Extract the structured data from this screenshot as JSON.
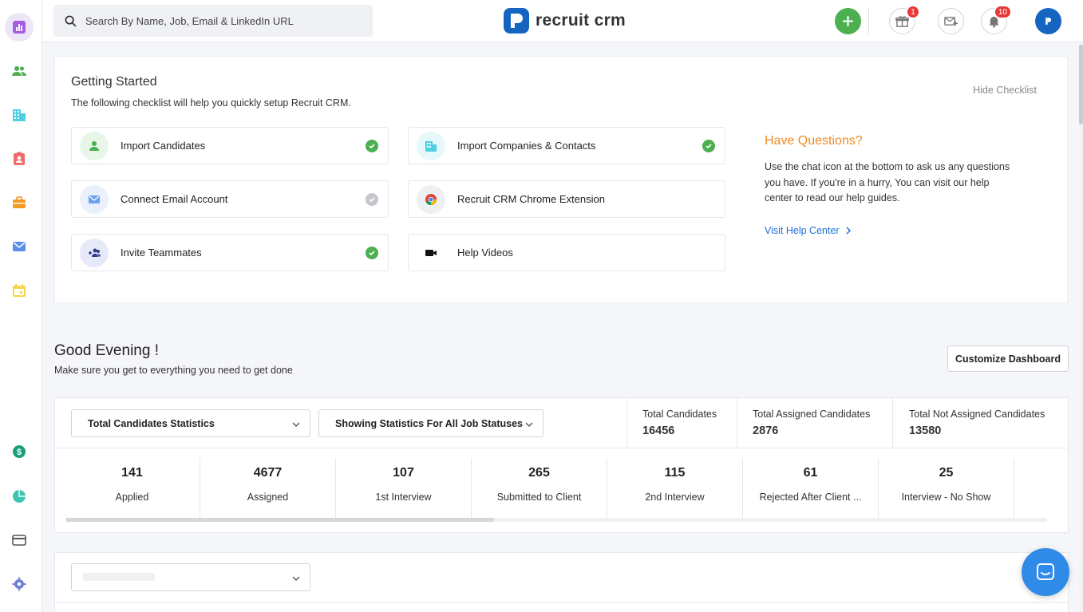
{
  "colors": {
    "brand": "#1565c0",
    "success": "#4caf50",
    "accent_orange": "#f08a24",
    "link": "#1e6fd6",
    "badge": "#e53935"
  },
  "sidebar": {
    "items": [
      {
        "icon": "dashboard-icon",
        "active": true
      },
      {
        "icon": "candidates-icon"
      },
      {
        "icon": "companies-icon"
      },
      {
        "icon": "contacts-icon"
      },
      {
        "icon": "jobs-icon"
      },
      {
        "icon": "email-icon"
      },
      {
        "icon": "calendar-icon"
      },
      {
        "icon": "billing-dollar-icon"
      },
      {
        "icon": "reports-pie-icon"
      },
      {
        "icon": "credit-card-icon"
      },
      {
        "icon": "settings-icon"
      }
    ]
  },
  "topbar": {
    "search_placeholder": "Search By Name, Job, Email & LinkedIn URL",
    "logo_text": "recruit crm",
    "gift_badge": "1",
    "notification_badge": "10"
  },
  "checklist": {
    "title": "Getting Started",
    "subtitle": "The following checklist will help you quickly setup Recruit CRM.",
    "hide_label": "Hide Checklist",
    "items": [
      {
        "label": "Import Candidates",
        "done": true
      },
      {
        "label": "Import Companies & Contacts",
        "done": true
      },
      {
        "label": "Connect Email Account",
        "done": false
      },
      {
        "label": "Recruit CRM Chrome Extension"
      },
      {
        "label": "Invite Teammates",
        "done": true
      },
      {
        "label": "Help Videos"
      }
    ],
    "questions_title": "Have Questions?",
    "questions_text": "Use the chat icon at the bottom to ask us any questions you have. If you're in a hurry, You can visit our help center to read our help guides.",
    "help_link": "Visit Help Center"
  },
  "greeting": {
    "title": "Good Evening !",
    "subtitle": "Make sure you get to everything you need to get done",
    "customize_label": "Customize Dashboard"
  },
  "stats": {
    "dropdown_type": "Total Candidates Statistics",
    "dropdown_status": "Showing Statistics For All Job Statuses",
    "totals": [
      {
        "label": "Total Candidates",
        "value": "16456"
      },
      {
        "label": "Total Assigned Candidates",
        "value": "2876"
      },
      {
        "label": "Total Not Assigned Candidates",
        "value": "13580"
      }
    ],
    "stages": [
      {
        "value": "141",
        "label": "Applied"
      },
      {
        "value": "4677",
        "label": "Assigned"
      },
      {
        "value": "107",
        "label": "1st Interview"
      },
      {
        "value": "265",
        "label": "Submitted to Client"
      },
      {
        "value": "115",
        "label": "2nd Interview"
      },
      {
        "value": "61",
        "label": "Rejected After Client ..."
      },
      {
        "value": "25",
        "label": "Interview - No Show"
      }
    ]
  }
}
